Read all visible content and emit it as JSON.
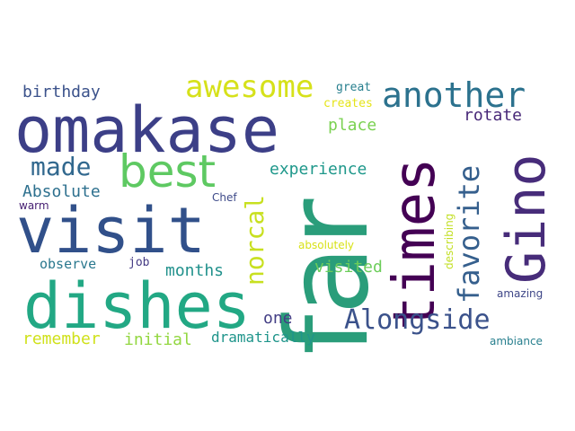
{
  "word_cloud": {
    "words": [
      {
        "id": "far",
        "text": "far",
        "color": "#2a9d7a"
      },
      {
        "id": "omakase",
        "text": "omakase",
        "color": "#3c3f87"
      },
      {
        "id": "visit",
        "text": "visit",
        "color": "#31508a"
      },
      {
        "id": "dishes",
        "text": "dishes",
        "color": "#22a884"
      },
      {
        "id": "times",
        "text": "times",
        "color": "#440154"
      },
      {
        "id": "gino",
        "text": "Gino",
        "color": "#472c7a"
      },
      {
        "id": "best",
        "text": "best",
        "color": "#5ec962"
      },
      {
        "id": "another",
        "text": "another",
        "color": "#2c728e"
      },
      {
        "id": "awesome",
        "text": "awesome",
        "color": "#d6e11a"
      },
      {
        "id": "favorite",
        "text": "favorite",
        "color": "#355f8d"
      },
      {
        "id": "alongside",
        "text": "Alongside",
        "color": "#3b528b"
      },
      {
        "id": "norcal",
        "text": "norcal",
        "color": "#c8e020"
      },
      {
        "id": "made",
        "text": "made",
        "color": "#31688e"
      },
      {
        "id": "experience",
        "text": "experience",
        "color": "#1f988b"
      },
      {
        "id": "place",
        "text": "place",
        "color": "#7ad151"
      },
      {
        "id": "rotate",
        "text": "rotate",
        "color": "#482878"
      },
      {
        "id": "birthday",
        "text": "birthday",
        "color": "#3b528b"
      },
      {
        "id": "absolute",
        "text": "Absolute",
        "color": "#2d708e"
      },
      {
        "id": "months",
        "text": "months",
        "color": "#21918c"
      },
      {
        "id": "visited",
        "text": "visited",
        "color": "#6ccd5a"
      },
      {
        "id": "observe",
        "text": "observe",
        "color": "#2a788e"
      },
      {
        "id": "one",
        "text": "one",
        "color": "#433e85"
      },
      {
        "id": "remember",
        "text": "remember",
        "color": "#d0e11c"
      },
      {
        "id": "initial",
        "text": "initial",
        "color": "#93d741"
      },
      {
        "id": "dramatically",
        "text": "dramatically",
        "color": "#1f958b"
      },
      {
        "id": "amazing",
        "text": "amazing",
        "color": "#3f4788"
      },
      {
        "id": "ambiance",
        "text": "ambiance",
        "color": "#277f8e"
      },
      {
        "id": "great",
        "text": "great",
        "color": "#277f8e"
      },
      {
        "id": "creates",
        "text": "creates",
        "color": "#e5e419"
      },
      {
        "id": "chef",
        "text": "Chef",
        "color": "#3e4a89"
      },
      {
        "id": "warm",
        "text": "warm",
        "color": "#482173"
      },
      {
        "id": "job",
        "text": "job",
        "color": "#443a83"
      },
      {
        "id": "absolutely",
        "text": "absolutely",
        "color": "#d8e219"
      },
      {
        "id": "describing",
        "text": "describing",
        "color": "#c2df23"
      }
    ]
  }
}
